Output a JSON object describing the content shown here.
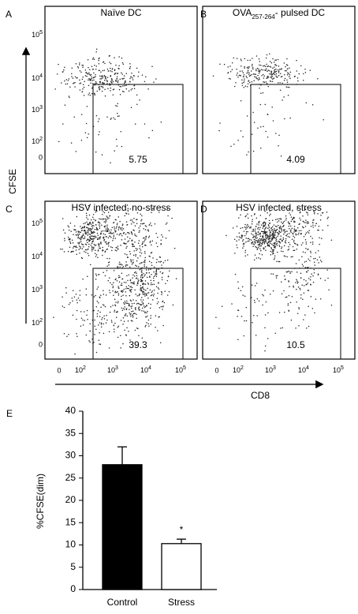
{
  "flow_panels": [
    {
      "letter": "A",
      "title": "Naïve DC",
      "gate_value": 5.75
    },
    {
      "letter": "B",
      "title_prefix": "OVA",
      "title_subscript": "257-264",
      "title_suffix": "- pulsed DC",
      "gate_value": 4.09
    },
    {
      "letter": "C",
      "title": "HSV infected, no-stress",
      "gate_value": 39.3
    },
    {
      "letter": "D",
      "title": "HSV infected, stress",
      "gate_value": 10.5
    }
  ],
  "flow_y_label": "CFSE",
  "flow_x_label": "CD8",
  "flow_yticks": [
    {
      "base": "10",
      "exponent": "5"
    },
    {
      "base": "10",
      "exponent": "4"
    },
    {
      "base": "10",
      "exponent": "3"
    },
    {
      "base": "10",
      "exponent": "2"
    },
    "0"
  ],
  "flow_xticks": [
    "0",
    {
      "base": "10",
      "exponent": "2"
    },
    {
      "base": "10",
      "exponent": "3"
    },
    {
      "base": "10",
      "exponent": "4"
    },
    {
      "base": "10",
      "exponent": "5"
    }
  ],
  "chart_data": {
    "type": "bar",
    "panel_letter": "E",
    "ylabel": "%CFSE(dim)",
    "categories": [
      "Control",
      "Stress"
    ],
    "values": [
      28,
      10.3
    ],
    "errors": [
      4,
      1
    ],
    "colors": [
      "#000000",
      "#ffffff"
    ],
    "annotation": "*",
    "ylim": [
      0,
      40
    ],
    "yticks": [
      0,
      5,
      10,
      15,
      20,
      25,
      30,
      35,
      40
    ]
  }
}
